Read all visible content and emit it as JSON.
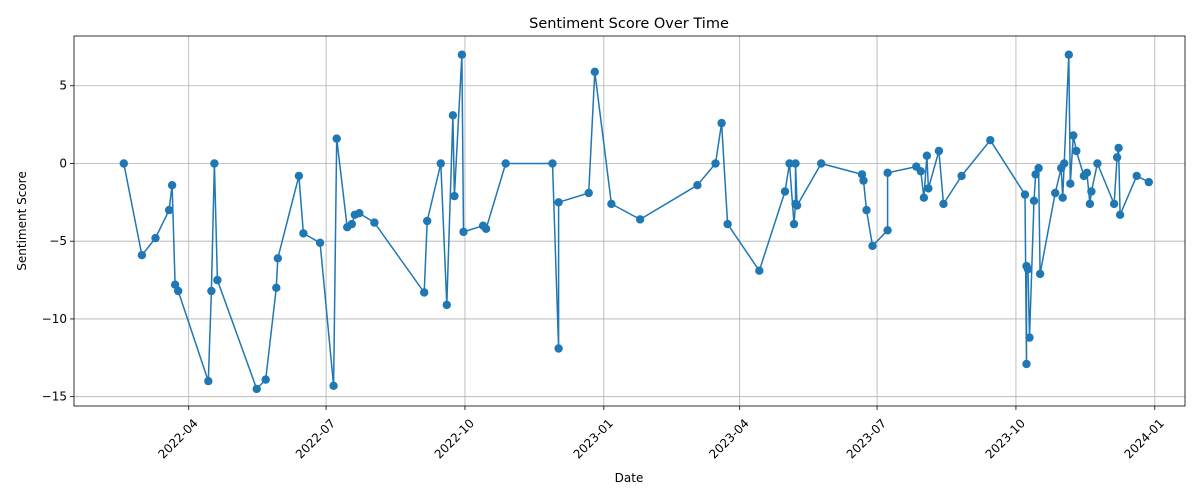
{
  "chart_data": {
    "type": "line",
    "title": "Sentiment Score Over Time",
    "xlabel": "Date",
    "ylabel": "Sentiment Score",
    "grid": true,
    "legend": "none",
    "color": "#1f77b4",
    "xlim": [
      "2022-01-15",
      "2024-01-21"
    ],
    "ylim": [
      -15.6,
      8.2
    ],
    "x_ticks": [
      {
        "date": "2022-04-01",
        "label": "2022-04"
      },
      {
        "date": "2022-07-01",
        "label": "2022-07"
      },
      {
        "date": "2022-10-01",
        "label": "2022-10"
      },
      {
        "date": "2023-01-01",
        "label": "2023-01"
      },
      {
        "date": "2023-04-01",
        "label": "2023-04"
      },
      {
        "date": "2023-07-01",
        "label": "2023-07"
      },
      {
        "date": "2023-10-01",
        "label": "2023-10"
      },
      {
        "date": "2024-01-01",
        "label": "2024-01"
      }
    ],
    "y_ticks": [
      {
        "value": 5,
        "label": "5"
      },
      {
        "value": 0,
        "label": "0"
      },
      {
        "value": -5,
        "label": "−5"
      },
      {
        "value": -10,
        "label": "−10"
      },
      {
        "value": -15,
        "label": "−15"
      }
    ],
    "series": [
      {
        "points": [
          {
            "x": "2022-02-17",
            "y": 0.0
          },
          {
            "x": "2022-03-01",
            "y": -5.9
          },
          {
            "x": "2022-03-10",
            "y": -4.8
          },
          {
            "x": "2022-03-19",
            "y": -3.0
          },
          {
            "x": "2022-03-21",
            "y": -1.4
          },
          {
            "x": "2022-03-23",
            "y": -7.8
          },
          {
            "x": "2022-03-25",
            "y": -8.2
          },
          {
            "x": "2022-04-14",
            "y": -14.0
          },
          {
            "x": "2022-04-16",
            "y": -8.2
          },
          {
            "x": "2022-04-18",
            "y": 0.0
          },
          {
            "x": "2022-04-20",
            "y": -7.5
          },
          {
            "x": "2022-05-16",
            "y": -14.5
          },
          {
            "x": "2022-05-22",
            "y": -13.9
          },
          {
            "x": "2022-05-29",
            "y": -8.0
          },
          {
            "x": "2022-05-30",
            "y": -6.1
          },
          {
            "x": "2022-06-13",
            "y": -0.8
          },
          {
            "x": "2022-06-16",
            "y": -4.5
          },
          {
            "x": "2022-06-27",
            "y": -5.1
          },
          {
            "x": "2022-07-06",
            "y": -14.3
          },
          {
            "x": "2022-07-08",
            "y": 1.6
          },
          {
            "x": "2022-07-15",
            "y": -4.1
          },
          {
            "x": "2022-07-18",
            "y": -3.9
          },
          {
            "x": "2022-07-20",
            "y": -3.3
          },
          {
            "x": "2022-07-23",
            "y": -3.2
          },
          {
            "x": "2022-08-02",
            "y": -3.8
          },
          {
            "x": "2022-09-04",
            "y": -8.3
          },
          {
            "x": "2022-09-06",
            "y": -3.7
          },
          {
            "x": "2022-09-15",
            "y": 0.0
          },
          {
            "x": "2022-09-19",
            "y": -9.1
          },
          {
            "x": "2022-09-23",
            "y": 3.1
          },
          {
            "x": "2022-09-24",
            "y": -2.1
          },
          {
            "x": "2022-09-29",
            "y": 7.0
          },
          {
            "x": "2022-09-30",
            "y": -4.4
          },
          {
            "x": "2022-10-13",
            "y": -4.0
          },
          {
            "x": "2022-10-15",
            "y": -4.2
          },
          {
            "x": "2022-10-28",
            "y": 0.0
          },
          {
            "x": "2022-11-28",
            "y": 0.0
          },
          {
            "x": "2022-12-02",
            "y": -11.9
          },
          {
            "x": "2022-12-02",
            "y": -2.5
          },
          {
            "x": "2022-12-22",
            "y": -1.9
          },
          {
            "x": "2022-12-26",
            "y": 5.9
          },
          {
            "x": "2023-01-06",
            "y": -2.6
          },
          {
            "x": "2023-01-25",
            "y": -3.6
          },
          {
            "x": "2023-03-04",
            "y": -1.4
          },
          {
            "x": "2023-03-16",
            "y": 0.0
          },
          {
            "x": "2023-03-20",
            "y": 2.6
          },
          {
            "x": "2023-03-24",
            "y": -3.9
          },
          {
            "x": "2023-04-14",
            "y": -6.9
          },
          {
            "x": "2023-05-01",
            "y": -1.8
          },
          {
            "x": "2023-05-04",
            "y": 0.0
          },
          {
            "x": "2023-05-07",
            "y": -3.9
          },
          {
            "x": "2023-05-08",
            "y": -2.6
          },
          {
            "x": "2023-05-08",
            "y": 0.0
          },
          {
            "x": "2023-05-09",
            "y": -2.7
          },
          {
            "x": "2023-05-25",
            "y": 0.0
          },
          {
            "x": "2023-06-21",
            "y": -0.7
          },
          {
            "x": "2023-06-22",
            "y": -1.1
          },
          {
            "x": "2023-06-24",
            "y": -3.0
          },
          {
            "x": "2023-06-28",
            "y": -5.3
          },
          {
            "x": "2023-07-08",
            "y": -4.3
          },
          {
            "x": "2023-07-08",
            "y": -0.6
          },
          {
            "x": "2023-07-27",
            "y": -0.2
          },
          {
            "x": "2023-07-30",
            "y": -0.5
          },
          {
            "x": "2023-08-01",
            "y": -2.2
          },
          {
            "x": "2023-08-03",
            "y": 0.5
          },
          {
            "x": "2023-08-04",
            "y": -1.6
          },
          {
            "x": "2023-08-11",
            "y": 0.8
          },
          {
            "x": "2023-08-14",
            "y": -2.6
          },
          {
            "x": "2023-08-26",
            "y": -0.8
          },
          {
            "x": "2023-09-14",
            "y": 1.5
          },
          {
            "x": "2023-10-07",
            "y": -2.0
          },
          {
            "x": "2023-10-08",
            "y": -12.9
          },
          {
            "x": "2023-10-08",
            "y": -6.6
          },
          {
            "x": "2023-10-09",
            "y": -6.8
          },
          {
            "x": "2023-10-10",
            "y": -11.2
          },
          {
            "x": "2023-10-13",
            "y": -2.4
          },
          {
            "x": "2023-10-14",
            "y": -0.7
          },
          {
            "x": "2023-10-16",
            "y": -0.3
          },
          {
            "x": "2023-10-17",
            "y": -7.1
          },
          {
            "x": "2023-10-27",
            "y": -1.9
          },
          {
            "x": "2023-10-31",
            "y": -0.3
          },
          {
            "x": "2023-11-01",
            "y": -2.2
          },
          {
            "x": "2023-11-02",
            "y": 0.0
          },
          {
            "x": "2023-11-05",
            "y": 7.0
          },
          {
            "x": "2023-11-06",
            "y": -1.3
          },
          {
            "x": "2023-11-08",
            "y": 1.8
          },
          {
            "x": "2023-11-10",
            "y": 0.8
          },
          {
            "x": "2023-11-15",
            "y": -0.8
          },
          {
            "x": "2023-11-17",
            "y": -0.6
          },
          {
            "x": "2023-11-19",
            "y": -2.6
          },
          {
            "x": "2023-11-20",
            "y": -1.8
          },
          {
            "x": "2023-11-24",
            "y": 0.0
          },
          {
            "x": "2023-12-05",
            "y": -2.6
          },
          {
            "x": "2023-12-07",
            "y": 0.4
          },
          {
            "x": "2023-12-08",
            "y": 1.0
          },
          {
            "x": "2023-12-09",
            "y": -3.3
          },
          {
            "x": "2023-12-20",
            "y": -0.8
          },
          {
            "x": "2023-12-28",
            "y": -1.2
          }
        ]
      }
    ]
  }
}
